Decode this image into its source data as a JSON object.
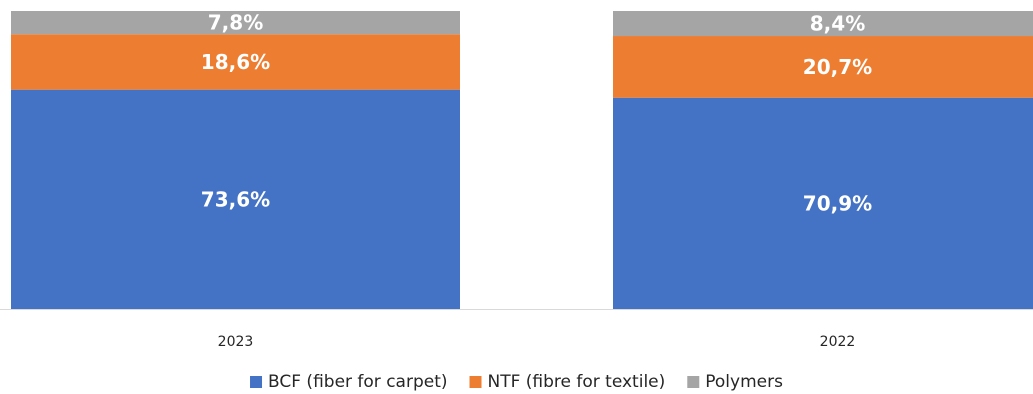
{
  "chart_data": {
    "type": "bar",
    "stacked": true,
    "percent_stacked": true,
    "categories": [
      "2023",
      "2022"
    ],
    "series": [
      {
        "name": "BCF (fiber for carpet)",
        "values": [
          73.6,
          70.9
        ],
        "labels": [
          "73,6%",
          "70,9%"
        ],
        "color": "#4472C4"
      },
      {
        "name": "NTF (fibre for textile)",
        "values": [
          18.6,
          20.7
        ],
        "labels": [
          "18,6%",
          "20,7%"
        ],
        "color": "#ED7D31"
      },
      {
        "name": "Polymers",
        "values": [
          7.8,
          8.4
        ],
        "labels": [
          "7,8%",
          "8,4%"
        ],
        "color": "#A5A5A5"
      }
    ],
    "ylim": [
      0,
      100
    ],
    "legend_position": "bottom",
    "grid": false
  }
}
